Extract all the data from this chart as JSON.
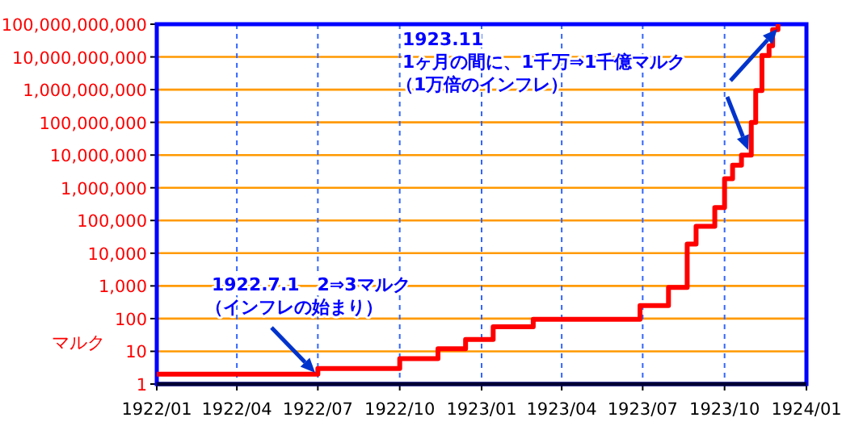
{
  "chart_data": {
    "type": "step",
    "ylabel": "マルク",
    "x": [
      "1922-01-01",
      "1922-07-01",
      "1922-10-01",
      "1922-11-13",
      "1922-12-14",
      "1923-01-14",
      "1923-02-28",
      "1923-06-28",
      "1923-07-30",
      "1923-08-20",
      "1923-08-30",
      "1923-09-20",
      "1923-10-01",
      "1923-10-10",
      "1923-10-20",
      "1923-10-31",
      "1923-11-05",
      "1923-11-12",
      "1923-11-20",
      "1923-11-24",
      "1923-11-30"
    ],
    "series": [
      {
        "color": "#ff0000",
        "values": [
          2,
          3,
          6,
          12,
          23,
          56,
          95,
          250,
          900,
          19000,
          66000,
          250000,
          1900000,
          4900000,
          10000000,
          100000000,
          940000000,
          11000000000,
          22000000000,
          68000000000,
          100000000000
        ]
      }
    ],
    "log": true,
    "ylim": [
      1,
      100000000000
    ],
    "yticks": [
      {
        "value": 1,
        "label": "1"
      },
      {
        "value": 10,
        "label": "10"
      },
      {
        "value": 100,
        "label": "100"
      },
      {
        "value": 1000,
        "label": "1,000"
      },
      {
        "value": 10000,
        "label": "10,000"
      },
      {
        "value": 100000,
        "label": "100,000"
      },
      {
        "value": 1000000,
        "label": "1,000,000"
      },
      {
        "value": 10000000,
        "label": "10,000,000"
      },
      {
        "value": 100000000,
        "label": "100,000,000"
      },
      {
        "value": 1000000000,
        "label": "1,000,000,000"
      },
      {
        "value": 10000000000,
        "label": "10,000,000,000"
      },
      {
        "value": 100000000000,
        "label": "100,000,000,000"
      }
    ],
    "xlim": [
      "1922-01",
      "1924-01"
    ],
    "xticks": [
      {
        "value": "1922-01",
        "label": "1922/01"
      },
      {
        "value": "1922-04",
        "label": "1922/04"
      },
      {
        "value": "1922-07",
        "label": "1922/07"
      },
      {
        "value": "1922-10",
        "label": "1922/10"
      },
      {
        "value": "1923-01",
        "label": "1923/01"
      },
      {
        "value": "1923-04",
        "label": "1923/04"
      },
      {
        "value": "1923-07",
        "label": "1923/07"
      },
      {
        "value": "1923-10",
        "label": "1923/10"
      },
      {
        "value": "1924-01",
        "label": "1924/01"
      }
    ],
    "grid": true,
    "annotations": [
      "1922.7.1　2⇒3マルク",
      "（インフレの始まり）",
      "1923.11\n1ヶ月の間に、1千万⇒1千億マルク",
      "（1万倍のインフレ）"
    ]
  }
}
